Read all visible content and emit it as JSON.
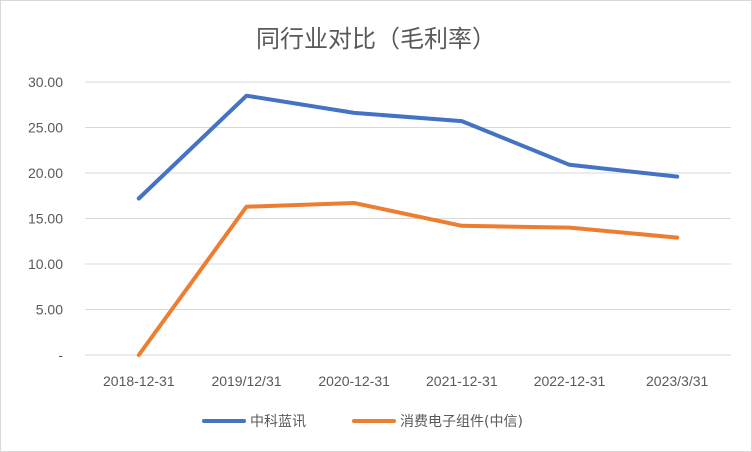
{
  "chart_data": {
    "type": "line",
    "title": "同行业对比（毛利率）",
    "categories": [
      "2018-12-31",
      "2019/12/31",
      "2020-12-31",
      "2021-12-31",
      "2022-12-31",
      "2023/3/31"
    ],
    "y_tick_labels": [
      "-",
      "5.00",
      "10.00",
      "15.00",
      "20.00",
      "25.00",
      "30.00"
    ],
    "ylim": [
      0,
      30
    ],
    "grid": true,
    "legend_position": "bottom",
    "series": [
      {
        "name": "中科蓝讯",
        "color": "#4472c4",
        "values": [
          17.2,
          28.5,
          26.6,
          25.7,
          20.9,
          19.6
        ]
      },
      {
        "name": "消费电子组件(中信)",
        "color": "#ed7d31",
        "values": [
          0,
          16.3,
          16.7,
          14.2,
          14.0,
          12.9
        ]
      }
    ]
  }
}
